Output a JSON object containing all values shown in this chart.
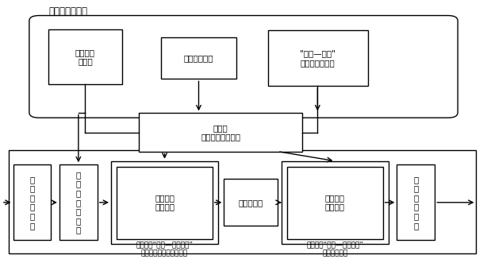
{
  "title": "交换机配置信息",
  "background": "#ffffff",
  "label_pfp": "分组首部\n解析图",
  "label_nec": "网元控制程序",
  "label_match_action": "\"匹配—动作\"\n信息表配置信息",
  "label_runtime": "运行时\n数据分组转发规则",
  "label_data_in": "数\n据\n分\n组\n进\n入",
  "label_parser": "分\n组\n首\n部\n解\n析\n器",
  "label_match_in": "匹配字段\n执行动作",
  "label_queue": "排队、缓存",
  "label_match_out": "匹配字段\n执行动作",
  "label_data_out": "数\n据\n分\n组\n发\n出",
  "label_inlet": "入口进行“匹配—执行动作”\n修改数据分组、选择出口",
  "label_outlet": "出口进行“匹配—执行动作”\n修改数据分组"
}
